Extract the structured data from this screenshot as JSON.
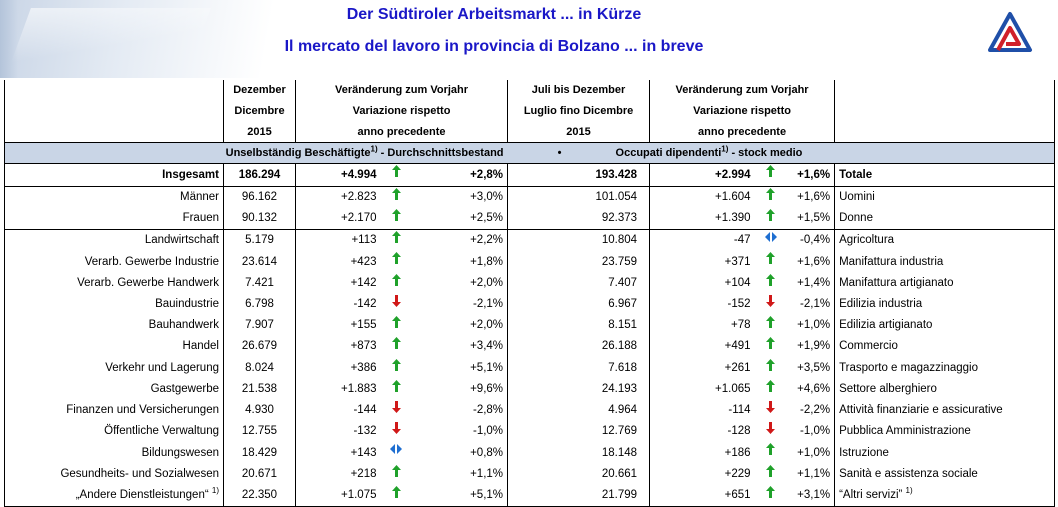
{
  "header": {
    "title_de": "Der Südtiroler Arbeitsmarkt ... in Kürze",
    "title_it": "Il mercato del lavoro in provincia di Bolzano ... in breve"
  },
  "columns": {
    "col1_l1": "Dezember",
    "col1_l2": "Dicembre",
    "col1_l3": "2015",
    "col2_l1": "Veränderung zum Vorjahr",
    "col2_l2": "Variazione rispetto",
    "col2_l3": "anno precedente",
    "col3_l1": "Juli bis Dezember",
    "col3_l2": "Luglio fino Dicembre",
    "col3_l3": "2015",
    "col4_l1": "Veränderung zum Vorjahr",
    "col4_l2": "Variazione rispetto",
    "col4_l3": "anno precedente"
  },
  "subheader": {
    "de_pre": "Unselbständig Beschäftigte",
    "de_sup": "1)",
    "de_post": " - Durchschnittsbestand",
    "bullet": "•",
    "it_pre": "Occupati dipendenti",
    "it_sup": "1)",
    "it_post": " - stock medio"
  },
  "rows": [
    {
      "de": "Insgesamt",
      "v1": "186.294",
      "d1": "+4.994",
      "a1": "up",
      "p1": "+2,8%",
      "v2": "193.428",
      "d2": "+2.994",
      "a2": "up",
      "p2": "+1,6%",
      "it": "Totale",
      "type": "tot"
    },
    {
      "de": "Männer",
      "v1": "96.162",
      "d1": "+2.823",
      "a1": "up",
      "p1": "+3,0%",
      "v2": "101.054",
      "d2": "+1.604",
      "a2": "up",
      "p2": "+1,6%",
      "it": "Uomini",
      "type": ""
    },
    {
      "de": "Frauen",
      "v1": "90.132",
      "d1": "+2.170",
      "a1": "up",
      "p1": "+2,5%",
      "v2": "92.373",
      "d2": "+1.390",
      "a2": "up",
      "p2": "+1,5%",
      "it": "Donne",
      "type": ""
    },
    {
      "de": "Landwirtschaft",
      "v1": "5.179",
      "d1": "+113",
      "a1": "up",
      "p1": "+2,2%",
      "v2": "10.804",
      "d2": "-47",
      "a2": "flat",
      "p2": "-0,4%",
      "it": "Agricoltura",
      "type": "sep"
    },
    {
      "de": "Verarb. Gewerbe Industrie",
      "v1": "23.614",
      "d1": "+423",
      "a1": "up",
      "p1": "+1,8%",
      "v2": "23.759",
      "d2": "+371",
      "a2": "up",
      "p2": "+1,6%",
      "it": "Manifattura industria",
      "type": ""
    },
    {
      "de": "Verarb. Gewerbe Handwerk",
      "v1": "7.421",
      "d1": "+142",
      "a1": "up",
      "p1": "+2,0%",
      "v2": "7.407",
      "d2": "+104",
      "a2": "up",
      "p2": "+1,4%",
      "it": "Manifattura artigianato",
      "type": ""
    },
    {
      "de": "Bauindustrie",
      "v1": "6.798",
      "d1": "-142",
      "a1": "down",
      "p1": "-2,1%",
      "v2": "6.967",
      "d2": "-152",
      "a2": "down",
      "p2": "-2,1%",
      "it": "Edilizia industria",
      "type": ""
    },
    {
      "de": "Bauhandwerk",
      "v1": "7.907",
      "d1": "+155",
      "a1": "up",
      "p1": "+2,0%",
      "v2": "8.151",
      "d2": "+78",
      "a2": "up",
      "p2": "+1,0%",
      "it": "Edilizia artigianato",
      "type": ""
    },
    {
      "de": "Handel",
      "v1": "26.679",
      "d1": "+873",
      "a1": "up",
      "p1": "+3,4%",
      "v2": "26.188",
      "d2": "+491",
      "a2": "up",
      "p2": "+1,9%",
      "it": "Commercio",
      "type": ""
    },
    {
      "de": "Verkehr und Lagerung",
      "v1": "8.024",
      "d1": "+386",
      "a1": "up",
      "p1": "+5,1%",
      "v2": "7.618",
      "d2": "+261",
      "a2": "up",
      "p2": "+3,5%",
      "it": "Trasporto e magazzinaggio",
      "type": ""
    },
    {
      "de": "Gastgewerbe",
      "v1": "21.538",
      "d1": "+1.883",
      "a1": "up",
      "p1": "+9,6%",
      "v2": "24.193",
      "d2": "+1.065",
      "a2": "up",
      "p2": "+4,6%",
      "it": "Settore alberghiero",
      "type": ""
    },
    {
      "de": "Finanzen und Versicherungen",
      "v1": "4.930",
      "d1": "-144",
      "a1": "down",
      "p1": "-2,8%",
      "v2": "4.964",
      "d2": "-114",
      "a2": "down",
      "p2": "-2,2%",
      "it": "Attività finanziarie e assicurative",
      "type": ""
    },
    {
      "de": "Öffentliche Verwaltung",
      "v1": "12.755",
      "d1": "-132",
      "a1": "down",
      "p1": "-1,0%",
      "v2": "12.769",
      "d2": "-128",
      "a2": "down",
      "p2": "-1,0%",
      "it": "Pubblica Amministrazione",
      "type": ""
    },
    {
      "de": "Bildungswesen",
      "v1": "18.429",
      "d1": "+143",
      "a1": "flat",
      "p1": "+0,8%",
      "v2": "18.148",
      "d2": "+186",
      "a2": "up",
      "p2": "+1,0%",
      "it": "Istruzione",
      "type": ""
    },
    {
      "de": "Gesundheits- und Sozialwesen",
      "v1": "20.671",
      "d1": "+218",
      "a1": "up",
      "p1": "+1,1%",
      "v2": "20.661",
      "d2": "+229",
      "a2": "up",
      "p2": "+1,1%",
      "it": "Sanità e assistenza sociale",
      "type": ""
    },
    {
      "de": "„Andere Dienstleistungen“",
      "de_sup": "1)",
      "v1": "22.350",
      "d1": "+1.075",
      "a1": "up",
      "p1": "+5,1%",
      "v2": "21.799",
      "d2": "+651",
      "a2": "up",
      "p2": "+3,1%",
      "it": "“Altri servizi”",
      "it_sup": "1)",
      "type": "last"
    }
  ],
  "colors": {
    "title": "#1a17c7",
    "subheader_bg": "#c9d5e6",
    "arrow_up": "#1fa12a",
    "arrow_down": "#d01818",
    "arrow_flat": "#1f6fd1",
    "logo_blue": "#1f4fa8",
    "logo_red": "#d0202a"
  },
  "icons": {
    "up": "arrow-up-icon",
    "down": "arrow-down-icon",
    "flat": "arrow-left-right-icon",
    "logo": "triangle-logo-icon"
  }
}
